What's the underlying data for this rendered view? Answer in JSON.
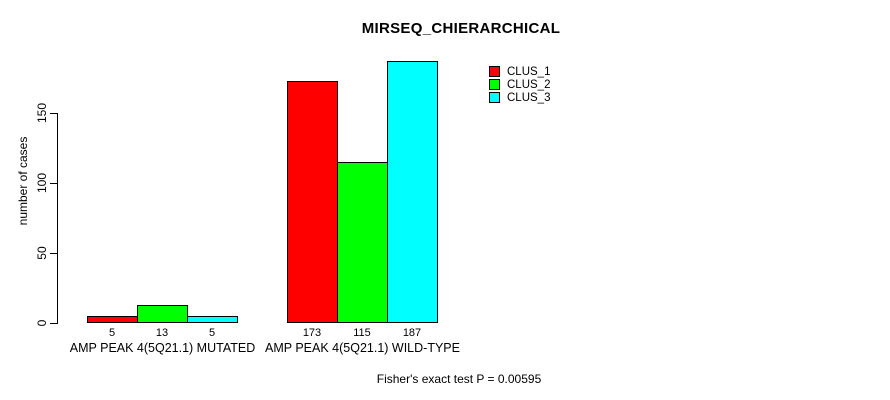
{
  "chart_data": {
    "type": "bar",
    "title": "MIRSEQ_CHIERARCHICAL",
    "ylabel": "number of cases",
    "xlabel": "",
    "categories": [
      "AMP PEAK 4(5Q21.1) MUTATED",
      "AMP PEAK 4(5Q21.1) WILD-TYPE"
    ],
    "series": [
      {
        "name": "CLUS_1",
        "color": "#ff0000",
        "values": [
          5,
          173
        ]
      },
      {
        "name": "CLUS_2",
        "color": "#00ff00",
        "values": [
          13,
          115
        ]
      },
      {
        "name": "CLUS_3",
        "color": "#00ffff",
        "values": [
          5,
          187
        ]
      }
    ],
    "yticks": [
      0,
      50,
      100,
      150
    ],
    "ylim": [
      0,
      190
    ],
    "grid": false,
    "legend_position": "top-right-inside",
    "show_bar_values": true,
    "bar_border_color": "#000000",
    "text_color": "#000000",
    "background_color": "#ffffff",
    "annotation": "Fisher's exact test P = 0.00595"
  }
}
